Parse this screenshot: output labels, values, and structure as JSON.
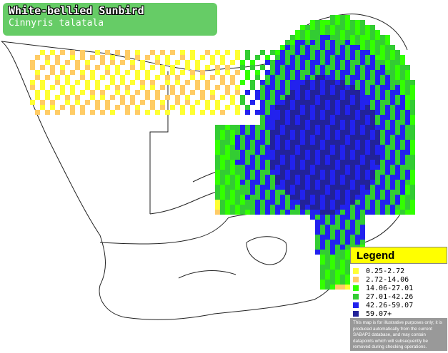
{
  "title": {
    "common_name": "White-bellied Sunbird",
    "scientific_name": "Cinnyris talatala"
  },
  "legend": {
    "heading": "Legend",
    "items": [
      {
        "label": "0.25-2.72",
        "color": "#ffff33"
      },
      {
        "label": "2.72-14.06",
        "color": "#ffcc66"
      },
      {
        "label": "14.06-27.01",
        "color": "#33ff00"
      },
      {
        "label": "27.01-42.26",
        "color": "#33cc33"
      },
      {
        "label": "42.26-59.07",
        "color": "#2222ee"
      },
      {
        "label": "59.07+",
        "color": "#222299"
      }
    ],
    "note": "This map is for illustrative purposes only; it is produced automatically from the current SABAP2 database, and may contain datapoints which will subsequently be removed during checking operations."
  },
  "colors": {
    "title_bg": "#66cc66",
    "legend_head_bg": "#ffff00",
    "legend_frame": "#999999",
    "outline": "#000000"
  }
}
